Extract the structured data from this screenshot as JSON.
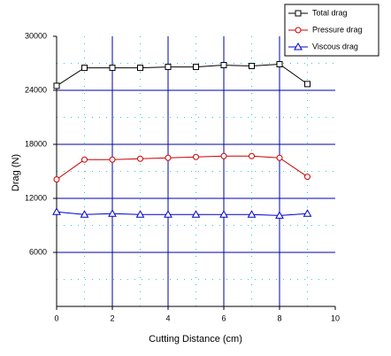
{
  "chart_data": {
    "type": "line",
    "xlabel": "Cutting Distance (cm)",
    "ylabel": "Drag (N)",
    "x": [
      0,
      1,
      2,
      3,
      4,
      5,
      6,
      7,
      8,
      9
    ],
    "series": [
      {
        "name": "Total drag",
        "color": "#000000",
        "marker": "square",
        "values": [
          24500,
          26500,
          26500,
          26500,
          26600,
          26600,
          26800,
          26700,
          26900,
          24700
        ]
      },
      {
        "name": "Pressure drag",
        "color": "#cc0000",
        "marker": "circle",
        "values": [
          14100,
          16300,
          16300,
          16400,
          16500,
          16600,
          16700,
          16700,
          16500,
          14400
        ]
      },
      {
        "name": "Viscous drag",
        "color": "#0000cc",
        "marker": "triangle",
        "values": [
          10500,
          10200,
          10300,
          10200,
          10200,
          10200,
          10200,
          10200,
          10100,
          10300
        ]
      }
    ],
    "xlim": [
      0,
      10
    ],
    "xticks": [
      0,
      2,
      4,
      6,
      8,
      10
    ],
    "ylim": [
      0,
      30000
    ],
    "yticks": [
      6000,
      12000,
      18000,
      24000,
      30000
    ],
    "grid": true,
    "grid_color": "#0000aa",
    "minor_grid": true,
    "minor_grid_color": "#33cccc",
    "legend": "top-right"
  }
}
